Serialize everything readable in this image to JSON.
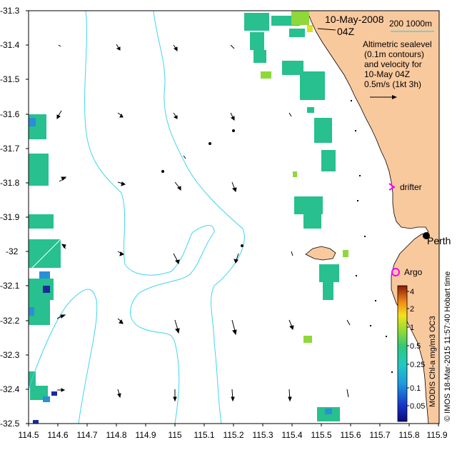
{
  "title_date": "10-May-2008",
  "title_time": "04Z",
  "depth_scale": "200  1000m",
  "legend_lines": [
    "Altimetric sealevel",
    "(0.1m contours)",
    "and velocity for",
    "10-May 04Z",
    "0.5m/s (1kt 3h)"
  ],
  "labels": {
    "drifter": "drifter",
    "perth": "Perth",
    "argo": "Argo"
  },
  "credit_right": "© IMOS 18-Mar-2015 11:57:40 Hobart time",
  "colorbar_title": "MODIS Chl-a mg/m3 OC3",
  "colorbar_ticks": [
    "4",
    "2",
    "1",
    "0.5",
    "0.25",
    "0.1",
    "0.05"
  ],
  "axes": {
    "x_ticks": [
      "114.5",
      "114.6",
      "114.7",
      "114.8",
      "114.9",
      "115",
      "115.1",
      "115.2",
      "115.3",
      "115.4",
      "115.5",
      "115.6",
      "115.7",
      "115.8",
      "115.9"
    ],
    "y_ticks": [
      "-31.3",
      "-31.4",
      "-31.5",
      "-31.6",
      "-31.7",
      "-31.8",
      "-31.9",
      "-32",
      "-32.1",
      "-32.2",
      "-32.3",
      "-32.4",
      "-32.5"
    ]
  },
  "colors": {
    "land": "#f9c99e",
    "contour": "#3fd5ee",
    "drifter_marker": "#ff00ff",
    "argo_marker": "#ff00ff"
  },
  "icons": [
    "velocity-arrow-icon",
    "drifter-arrow-icon",
    "argo-circle-icon",
    "perth-dot-icon"
  ]
}
